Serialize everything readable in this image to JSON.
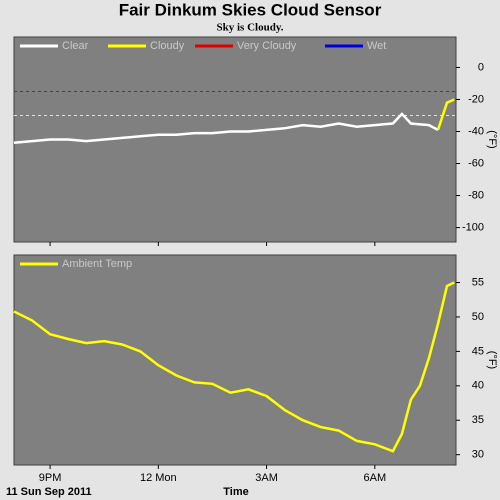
{
  "chart_data": [
    {
      "type": "line",
      "title": "Fair Dinkum Skies Cloud Sensor",
      "subtitle": "Sky is Cloudy.",
      "y_label": "(°F)",
      "x": [
        20,
        20.5,
        21,
        21.5,
        22,
        22.5,
        23,
        23.5,
        24,
        24.5,
        25,
        25.5,
        26,
        26.5,
        27,
        27.5,
        28,
        28.5,
        29,
        29.5,
        30,
        30.5,
        30.75,
        31,
        31.5,
        31.75,
        32,
        32.2
      ],
      "xlim": [
        20,
        32.25
      ],
      "xticks": [
        {
          "value": 21,
          "label": "9PM"
        },
        {
          "value": 24,
          "label": "12 Mon"
        },
        {
          "value": 27,
          "label": "3AM"
        },
        {
          "value": 30,
          "label": "6AM"
        }
      ],
      "ylim": [
        -109,
        19
      ],
      "yticks": [
        0,
        -20,
        -40,
        -60,
        -80,
        -100
      ],
      "series": [
        {
          "name": "Clear",
          "color": "#ffffff",
          "values": [
            -47,
            -46,
            -45,
            -45,
            -46,
            -45,
            -44,
            -43,
            -42,
            -42,
            -41,
            -41,
            -40,
            -40,
            -39,
            -38,
            -36,
            -37,
            -35,
            -37,
            -36,
            -35,
            -29,
            -35,
            -36,
            -39,
            null,
            null
          ]
        },
        {
          "name": "Cloudy",
          "color": "#ffff00",
          "values": [
            null,
            null,
            null,
            null,
            null,
            null,
            null,
            null,
            null,
            null,
            null,
            null,
            null,
            null,
            null,
            null,
            null,
            null,
            null,
            null,
            null,
            null,
            null,
            null,
            null,
            -39,
            -22,
            -20
          ]
        },
        {
          "name": "Very Cloudy",
          "color": "#e00000",
          "values": [
            null,
            null,
            null,
            null,
            null,
            null,
            null,
            null,
            null,
            null,
            null,
            null,
            null,
            null,
            null,
            null,
            null,
            null,
            null,
            null,
            null,
            null,
            null,
            null,
            null,
            null,
            null,
            null
          ]
        },
        {
          "name": "Wet",
          "color": "#0000e0",
          "values": [
            null,
            null,
            null,
            null,
            null,
            null,
            null,
            null,
            null,
            null,
            null,
            null,
            null,
            null,
            null,
            null,
            null,
            null,
            null,
            null,
            null,
            null,
            null,
            null,
            null,
            null,
            null,
            null
          ]
        }
      ],
      "thresholds": [
        {
          "value": -15,
          "color": "#e00000"
        },
        {
          "value": -30,
          "color": "#ffff00"
        }
      ]
    },
    {
      "type": "line",
      "y_label": "(°F)",
      "x_label": "Time",
      "date_label": "11 Sun Sep 2011",
      "x": [
        20,
        20.5,
        21,
        21.5,
        22,
        22.5,
        23,
        23.5,
        24,
        24.5,
        25,
        25.5,
        26,
        26.5,
        27,
        27.5,
        28,
        28.5,
        29,
        29.5,
        30,
        30.5,
        30.75,
        31,
        31.25,
        31.5,
        31.75,
        32,
        32.2
      ],
      "xlim": [
        20,
        32.25
      ],
      "xticks": [
        {
          "value": 21,
          "label": "9PM"
        },
        {
          "value": 24,
          "label": "12 Mon"
        },
        {
          "value": 27,
          "label": "3AM"
        },
        {
          "value": 30,
          "label": "6AM"
        }
      ],
      "ylim": [
        28.5,
        59
      ],
      "yticks": [
        55,
        50,
        45,
        40,
        35,
        30
      ],
      "series": [
        {
          "name": "Ambient Temp",
          "color": "#ffff00",
          "values": [
            50.8,
            49.5,
            47.5,
            46.8,
            46.2,
            46.5,
            46,
            45,
            43,
            41.5,
            40.5,
            40.3,
            39,
            39.5,
            38.5,
            36.5,
            35,
            34,
            33.5,
            32,
            31.5,
            30.5,
            33,
            38,
            40,
            44,
            49,
            54.5,
            55
          ]
        }
      ]
    }
  ]
}
